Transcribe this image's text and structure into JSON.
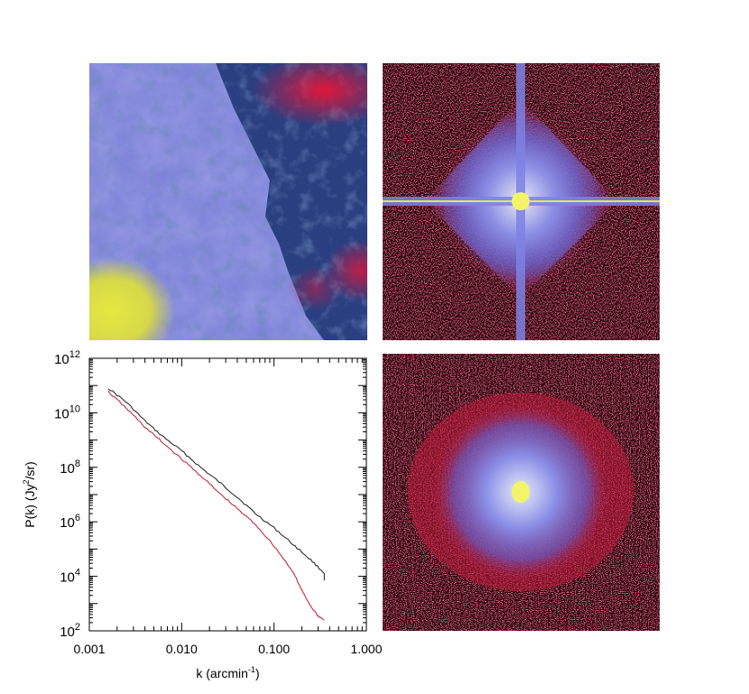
{
  "panels": {
    "map": {
      "name": "sky-intensity-map"
    },
    "fft_top": {
      "name": "fft-amplitude-map"
    },
    "fft_bottom": {
      "name": "fft-amplitude-map-corrected"
    }
  },
  "colors": {
    "blue_tone": "#7f84e6",
    "dark_blue": "#27407f",
    "red": "#d21a3a",
    "yellow": "#e8e84a",
    "black_curve": "#1a1a1a",
    "red_curve": "#c0182a"
  },
  "chart_data": {
    "type": "line",
    "title": "",
    "xlabel": "k (arcmin",
    "xlabel_sup": "-1",
    "xlabel_end": ")",
    "ylabel": "P(k) (Jy",
    "ylabel_sup": "2",
    "ylabel_end": "/sr)",
    "xscale": "log",
    "yscale": "log",
    "xlim": [
      0.001,
      1.0
    ],
    "ylim": [
      100,
      1000000000000
    ],
    "xticks": [
      {
        "value": 0.001,
        "label": "0.001"
      },
      {
        "value": 0.01,
        "label": "0.010"
      },
      {
        "value": 0.1,
        "label": "0.100"
      },
      {
        "value": 1.0,
        "label": "1.000"
      }
    ],
    "yticks": [
      {
        "value": 100,
        "base": "10",
        "exp": "2"
      },
      {
        "value": 10000,
        "base": "10",
        "exp": "4"
      },
      {
        "value": 1000000,
        "base": "10",
        "exp": "6"
      },
      {
        "value": 100000000,
        "base": "10",
        "exp": "8"
      },
      {
        "value": 10000000000,
        "base": "10",
        "exp": "10"
      },
      {
        "value": 1000000000000,
        "base": "10",
        "exp": "12"
      }
    ],
    "series": [
      {
        "color": "#1a1a1a",
        "x": [
          0.0016,
          0.0025,
          0.004,
          0.006,
          0.01,
          0.016,
          0.025,
          0.04,
          0.063,
          0.1,
          0.16,
          0.25,
          0.35
        ],
        "y": [
          80000000000,
          25000000000,
          5000000000,
          1500000000,
          400000000,
          100000000,
          30000000,
          8000000,
          2000000,
          600000,
          150000,
          40000,
          13000
        ]
      },
      {
        "color": "#c0182a",
        "x": [
          0.0016,
          0.0025,
          0.004,
          0.006,
          0.01,
          0.016,
          0.025,
          0.04,
          0.063,
          0.1,
          0.16,
          0.2,
          0.25,
          0.3,
          0.35
        ],
        "y": [
          60000000000,
          15000000000,
          3000000000,
          900000000,
          200000000,
          50000000,
          12000000,
          3000000,
          800000,
          130000,
          15000,
          3000,
          800,
          350,
          250
        ]
      }
    ]
  }
}
